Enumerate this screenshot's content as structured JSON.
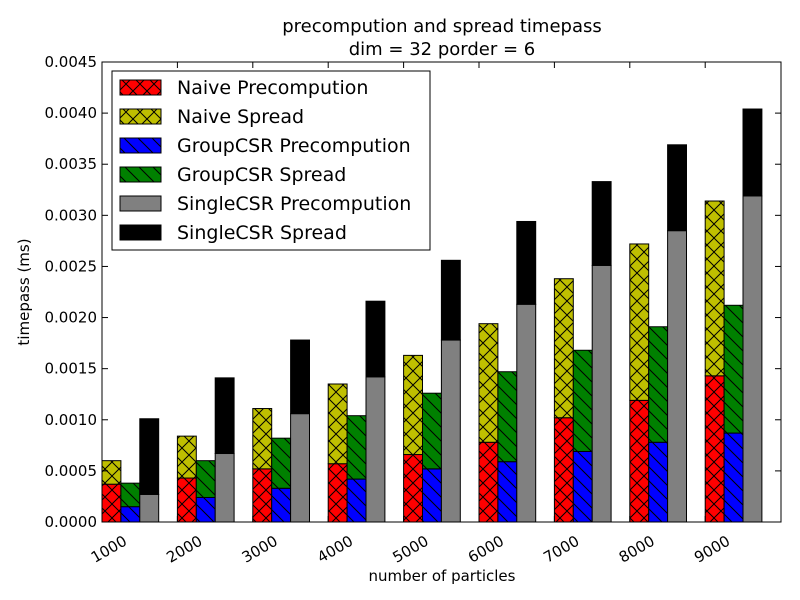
{
  "chart_data": {
    "type": "bar",
    "title_line1": "precompution and spread timepass",
    "title_line2": "dim = 32 porder = 6",
    "xlabel": "number of particles",
    "ylabel": "timepass (ms)",
    "categories": [
      "1000",
      "2000",
      "3000",
      "4000",
      "5000",
      "6000",
      "7000",
      "8000",
      "9000"
    ],
    "ylim": [
      0,
      0.0045
    ],
    "yticks": [
      "0.0000",
      "0.0005",
      "0.0010",
      "0.0015",
      "0.0020",
      "0.0025",
      "0.0030",
      "0.0035",
      "0.0040",
      "0.0045"
    ],
    "grid": false,
    "legend_position": "top-left",
    "stacks": [
      {
        "name": "Naive",
        "segments": [
          {
            "name": "Naive Precompution",
            "color": "#ff0000",
            "hatch": "cross",
            "values": [
              0.00037,
              0.00043,
              0.00052,
              0.00057,
              0.00066,
              0.00078,
              0.00102,
              0.00119,
              0.00143
            ]
          },
          {
            "name": "Naive Spread",
            "color": "#bfbf00",
            "hatch": "cross",
            "values": [
              0.00023,
              0.00041,
              0.00059,
              0.00078,
              0.00097,
              0.00116,
              0.00136,
              0.00153,
              0.00171
            ]
          }
        ]
      },
      {
        "name": "GroupCSR",
        "segments": [
          {
            "name": "GroupCSR Precompution",
            "color": "#0000ff",
            "hatch": "backslash",
            "values": [
              0.00015,
              0.00024,
              0.00033,
              0.00042,
              0.00052,
              0.00059,
              0.00069,
              0.00078,
              0.00087
            ]
          },
          {
            "name": "GroupCSR Spread",
            "color": "#008000",
            "hatch": "backslash",
            "values": [
              0.00023,
              0.00036,
              0.00049,
              0.00062,
              0.00074,
              0.00088,
              0.00099,
              0.00113,
              0.00125
            ]
          }
        ]
      },
      {
        "name": "SingleCSR",
        "segments": [
          {
            "name": "SingleCSR Precompution",
            "color": "#808080",
            "hatch": "none",
            "values": [
              0.00027,
              0.00067,
              0.00106,
              0.00142,
              0.00178,
              0.00213,
              0.00251,
              0.00285,
              0.00319
            ]
          },
          {
            "name": "SingleCSR Spread",
            "color": "#000000",
            "hatch": "none",
            "values": [
              0.00074,
              0.00074,
              0.00072,
              0.00074,
              0.00078,
              0.00081,
              0.00082,
              0.00084,
              0.00085
            ]
          }
        ]
      }
    ]
  }
}
